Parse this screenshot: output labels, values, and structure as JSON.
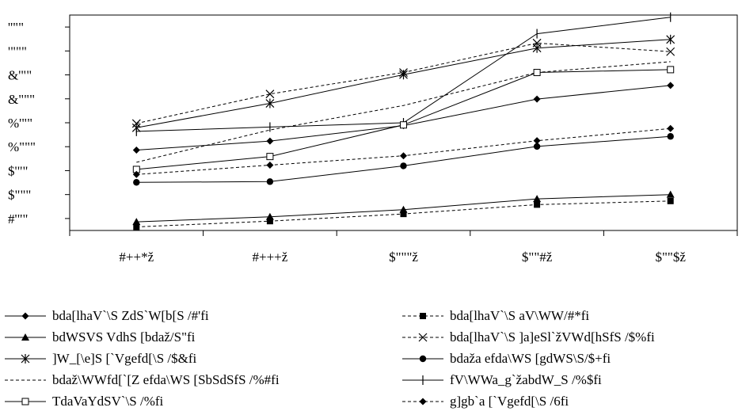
{
  "chart_data": {
    "type": "line",
    "title": "",
    "xlabel": "",
    "ylabel": "",
    "categories": [
      "#++*ž",
      "#+++ž",
      "$\"\"\"ž",
      "$\"\"#ž",
      "$\"\"$ž"
    ],
    "yticks": [
      "#'\"\"",
      "$\"\"\"",
      "$'\"\"",
      "%\"\"\"",
      "%'\"\"",
      "&\"\"\"",
      "&'\"\"",
      "'\"\"\"",
      "''\"\""
    ],
    "ylim": [
      1500,
      4500
    ],
    "grid": false,
    "legend_position": "bottom",
    "series": [
      {
        "name": "bda[lhaV`\\S ZdS`W[b[S /#'fi",
        "values": [
          2620,
          2745,
          2960,
          3330,
          3520
        ],
        "marker": "diamond",
        "dash": "solid"
      },
      {
        "name": "bda[lhaV`\\S aV\\WW/#*fi",
        "values": [
          1550,
          1630,
          1730,
          1860,
          1910
        ],
        "marker": "square",
        "dash": "dash"
      },
      {
        "name": "bdWSVS VdhS [bdaž/S\"fi",
        "values": [
          1620,
          1690,
          1790,
          1940,
          2000
        ],
        "marker": "triangle",
        "dash": "solid"
      },
      {
        "name": "bda[lhaV`\\S ]a]eSl`žVWd[hSfS /$%fi",
        "values": [
          2990,
          3400,
          3700,
          4110,
          3990
        ],
        "marker": "x",
        "dash": "dash"
      },
      {
        "name": "]W_[\\e]S [`Vgefd[\\S /$&fi",
        "values": [
          2930,
          3270,
          3670,
          4040,
          4160
        ],
        "marker": "asterisk",
        "dash": "solid"
      },
      {
        "name": "bdaža efda\\WS [gdWS\\S/$+fi",
        "values": [
          2170,
          2180,
          2400,
          2670,
          2810
        ],
        "marker": "circle",
        "dash": "solid"
      },
      {
        "name": "bdaž\\WWfd[`[Z efda\\WS [SbSdSfS /%#fi",
        "values": [
          2450,
          2900,
          3240,
          3700,
          3850
        ],
        "marker": "none",
        "dash": "dash"
      },
      {
        "name": "fV\\WWa_g`žabdW_S /%$fi",
        "values": [
          2880,
          2940,
          3000,
          4240,
          4470
        ],
        "marker": "plus",
        "dash": "solid"
      },
      {
        "name": "TdaVaYdSV`\\S /%fi",
        "values": [
          2350,
          2530,
          2970,
          3700,
          3740
        ],
        "marker": "opensquare",
        "dash": "solid"
      },
      {
        "name": "g]gb`a [`Vgefd[\\S /6fi",
        "values": [
          2280,
          2410,
          2540,
          2750,
          2920
        ],
        "marker": "diamond",
        "dash": "dash"
      }
    ]
  }
}
